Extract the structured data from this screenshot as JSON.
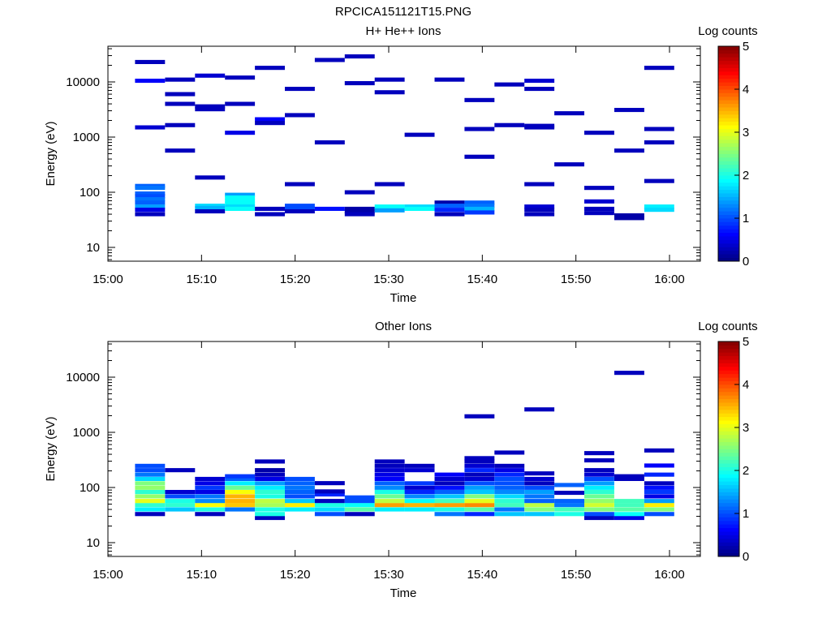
{
  "title": "RPCICA151121T15.PNG",
  "chart_data": [
    {
      "type": "heatmap",
      "title": "H+ He++ Ions",
      "xlabel": "Time",
      "ylabel": "Energy (eV)",
      "yscale": "log",
      "ylim": [
        5.6,
        44000
      ],
      "xlim_minutes": [
        0,
        63
      ],
      "xticks": [
        "15:00",
        "15:10",
        "15:20",
        "15:30",
        "15:40",
        "15:50",
        "16:00"
      ],
      "yticks": [
        "10",
        "100",
        "1000",
        "10000"
      ],
      "colorbar": {
        "label": "Log counts",
        "range": [
          0,
          5
        ],
        "ticks": [
          "0",
          "1",
          "2",
          "3",
          "4",
          "5"
        ],
        "colormap": "jet"
      },
      "time_bin_start_minutes": 2.9,
      "time_bin_width_minutes": 3.2,
      "columns": [
        [
          [
            23000,
            0.3
          ],
          [
            10500,
            0.6
          ],
          [
            1500,
            0.4
          ],
          [
            130,
            1.1
          ],
          [
            120,
            1.2
          ],
          [
            95,
            1.1
          ],
          [
            85,
            1.0
          ],
          [
            75,
            1.2
          ],
          [
            65,
            1.1
          ],
          [
            55,
            1.4
          ],
          [
            48,
            0.5
          ],
          [
            40,
            0.3
          ]
        ],
        [
          [
            11000,
            0.3
          ],
          [
            6000,
            0.3
          ],
          [
            4000,
            0.3
          ],
          [
            1650,
            0.3
          ],
          [
            570,
            0.3
          ]
        ],
        [
          [
            13000,
            0.4
          ],
          [
            3600,
            0.3
          ],
          [
            3200,
            0.3
          ],
          [
            185,
            0.3
          ],
          [
            57,
            1.7
          ],
          [
            52,
            1.5
          ],
          [
            45,
            0.3
          ]
        ],
        [
          [
            12000,
            0.3
          ],
          [
            4000,
            0.3
          ],
          [
            1200,
            0.5
          ],
          [
            90,
            1.4
          ],
          [
            80,
            1.9
          ],
          [
            70,
            1.9
          ],
          [
            62,
            1.9
          ],
          [
            55,
            1.7
          ],
          [
            50,
            1.9
          ]
        ],
        [
          [
            18000,
            0.3
          ],
          [
            2100,
            0.6
          ],
          [
            1800,
            0.3
          ],
          [
            50,
            0.3
          ],
          [
            40,
            0.3
          ]
        ],
        [
          [
            7500,
            0.3
          ],
          [
            2500,
            0.3
          ],
          [
            140,
            0.3
          ],
          [
            57,
            1.0
          ],
          [
            50,
            1.0
          ],
          [
            45,
            0.3
          ]
        ],
        [
          [
            25000,
            0.3
          ],
          [
            800,
            0.3
          ],
          [
            50,
            0.7
          ]
        ],
        [
          [
            29000,
            0.3
          ],
          [
            9500,
            0.3
          ],
          [
            100,
            0.3
          ],
          [
            50,
            0.2
          ],
          [
            45,
            0.2
          ],
          [
            40,
            0.3
          ]
        ],
        [
          [
            11000,
            0.3
          ],
          [
            6500,
            0.3
          ],
          [
            140,
            0.3
          ],
          [
            55,
            1.9
          ],
          [
            47,
            1.4
          ]
        ],
        [
          [
            1100,
            0.3
          ],
          [
            55,
            1.7
          ],
          [
            50,
            1.9
          ]
        ],
        [
          [
            11000,
            0.3
          ],
          [
            65,
            0.2
          ],
          [
            57,
            1.1
          ],
          [
            48,
            0.8
          ],
          [
            40,
            0.3
          ]
        ],
        [
          [
            4700,
            0.3
          ],
          [
            1400,
            0.3
          ],
          [
            440,
            0.3
          ],
          [
            65,
            1.1
          ],
          [
            57,
            1.2
          ],
          [
            50,
            1.5
          ],
          [
            43,
            0.9
          ]
        ],
        [
          [
            9000,
            0.3
          ],
          [
            1650,
            0.3
          ]
        ],
        [
          [
            10500,
            0.4
          ],
          [
            7500,
            0.3
          ],
          [
            1600,
            0.3
          ],
          [
            1500,
            0.3
          ],
          [
            140,
            0.3
          ],
          [
            55,
            0.4
          ],
          [
            48,
            0.3
          ],
          [
            40,
            0.3
          ]
        ],
        [
          [
            2700,
            0.3
          ],
          [
            320,
            0.3
          ]
        ],
        [
          [
            1200,
            0.3
          ],
          [
            120,
            0.3
          ],
          [
            68,
            0.4
          ],
          [
            50,
            0.3
          ],
          [
            42,
            0.3
          ]
        ],
        [
          [
            3100,
            0.3
          ],
          [
            570,
            0.3
          ],
          [
            38,
            0.2
          ],
          [
            34,
            0.2
          ]
        ],
        [
          [
            18000,
            0.3
          ],
          [
            1400,
            0.3
          ],
          [
            800,
            0.3
          ],
          [
            160,
            0.3
          ],
          [
            55,
            1.8
          ],
          [
            48,
            1.7
          ]
        ]
      ]
    },
    {
      "type": "heatmap",
      "title": "Other Ions",
      "xlabel": "Time",
      "ylabel": "Energy (eV)",
      "yscale": "log",
      "ylim": [
        5.6,
        44000
      ],
      "xlim_minutes": [
        0,
        63
      ],
      "xticks": [
        "15:00",
        "15:10",
        "15:20",
        "15:30",
        "15:40",
        "15:50",
        "16:00"
      ],
      "yticks": [
        "10",
        "100",
        "1000",
        "10000"
      ],
      "colorbar": {
        "label": "Log counts",
        "range": [
          0,
          5
        ],
        "ticks": [
          "0",
          "1",
          "2",
          "3",
          "4",
          "5"
        ],
        "colormap": "jet"
      },
      "time_bin_start_minutes": 2.9,
      "time_bin_width_minutes": 3.2,
      "columns": [
        [
          [
            33,
            0.3
          ],
          [
            40,
            1.8
          ],
          [
            48,
            2.1
          ],
          [
            57,
            3.0
          ],
          [
            69,
            2.6
          ],
          [
            83,
            2.1
          ],
          [
            99,
            2.6
          ],
          [
            119,
            2.5
          ],
          [
            143,
            1.7
          ],
          [
            171,
            1.2
          ],
          [
            206,
            1.0
          ],
          [
            247,
            1.0
          ]
        ],
        [
          [
            40,
            1.6
          ],
          [
            48,
            2.1
          ],
          [
            57,
            2.0
          ],
          [
            69,
            1.0
          ],
          [
            83,
            0.4
          ],
          [
            206,
            0.3
          ]
        ],
        [
          [
            33,
            0.3
          ],
          [
            40,
            2.0
          ],
          [
            48,
            3.1
          ],
          [
            57,
            1.3
          ],
          [
            69,
            1.2
          ],
          [
            83,
            0.5
          ],
          [
            99,
            0.9
          ],
          [
            119,
            0.5
          ],
          [
            143,
            0.4
          ]
        ],
        [
          [
            40,
            1.2
          ],
          [
            48,
            3.4
          ],
          [
            57,
            3.5
          ],
          [
            69,
            3.5
          ],
          [
            83,
            3.1
          ],
          [
            99,
            2.4
          ],
          [
            119,
            1.8
          ],
          [
            143,
            1.1
          ],
          [
            160,
            0.9
          ]
        ],
        [
          [
            28,
            0.3
          ],
          [
            33,
            2.0
          ],
          [
            40,
            2.0
          ],
          [
            48,
            2.7
          ],
          [
            57,
            2.8
          ],
          [
            69,
            2.0
          ],
          [
            83,
            2.1
          ],
          [
            99,
            1.8
          ],
          [
            119,
            1.4
          ],
          [
            143,
            0.5
          ],
          [
            171,
            0.3
          ],
          [
            206,
            0.2
          ],
          [
            296,
            0.3
          ]
        ],
        [
          [
            40,
            1.8
          ],
          [
            48,
            3.2
          ],
          [
            57,
            1.6
          ],
          [
            69,
            1.0
          ],
          [
            83,
            1.1
          ],
          [
            99,
            1.2
          ],
          [
            119,
            1.1
          ],
          [
            143,
            1.0
          ]
        ],
        [
          [
            33,
            1.0
          ],
          [
            40,
            1.7
          ],
          [
            48,
            2.0
          ],
          [
            57,
            0.3
          ],
          [
            75,
            0.8
          ],
          [
            85,
            0.3
          ],
          [
            120,
            0.3
          ]
        ],
        [
          [
            33,
            0.3
          ],
          [
            40,
            2.3
          ],
          [
            48,
            1.9
          ],
          [
            57,
            1.0
          ],
          [
            66,
            1.0
          ]
        ],
        [
          [
            40,
            1.8
          ],
          [
            48,
            3.6
          ],
          [
            57,
            2.8
          ],
          [
            69,
            2.4
          ],
          [
            83,
            2.0
          ],
          [
            99,
            1.3
          ],
          [
            119,
            1.1
          ],
          [
            143,
            0.6
          ],
          [
            171,
            0.5
          ],
          [
            206,
            0.4
          ],
          [
            247,
            0.3
          ],
          [
            296,
            0.3
          ]
        ],
        [
          [
            40,
            1.8
          ],
          [
            48,
            3.5
          ],
          [
            57,
            1.9
          ],
          [
            69,
            1.3
          ],
          [
            83,
            0.8
          ],
          [
            99,
            0.4
          ],
          [
            119,
            0.9
          ],
          [
            206,
            0.4
          ],
          [
            247,
            0.3
          ]
        ],
        [
          [
            33,
            1.2
          ],
          [
            40,
            2.0
          ],
          [
            48,
            3.6
          ],
          [
            57,
            2.2
          ],
          [
            69,
            1.6
          ],
          [
            83,
            1.1
          ],
          [
            99,
            0.7
          ],
          [
            119,
            0.3
          ],
          [
            143,
            0.4
          ],
          [
            171,
            0.6
          ]
        ],
        [
          [
            33,
            0.8
          ],
          [
            40,
            2.3
          ],
          [
            48,
            3.7
          ],
          [
            57,
            3.0
          ],
          [
            69,
            2.5
          ],
          [
            83,
            1.6
          ],
          [
            99,
            1.4
          ],
          [
            119,
            1.0
          ],
          [
            143,
            0.4
          ],
          [
            171,
            0.3
          ],
          [
            206,
            0.8
          ],
          [
            247,
            0.4
          ],
          [
            296,
            0.3
          ],
          [
            340,
            0.3
          ],
          [
            1950,
            0.3
          ]
        ],
        [
          [
            33,
            1.6
          ],
          [
            40,
            1.2
          ],
          [
            48,
            2.2
          ],
          [
            57,
            2.1
          ],
          [
            69,
            1.7
          ],
          [
            83,
            1.3
          ],
          [
            99,
            1.1
          ],
          [
            119,
            1.0
          ],
          [
            143,
            1.0
          ],
          [
            171,
            0.8
          ],
          [
            206,
            0.5
          ],
          [
            247,
            0.3
          ],
          [
            430,
            0.3
          ]
        ],
        [
          [
            33,
            1.6
          ],
          [
            40,
            2.5
          ],
          [
            48,
            2.8
          ],
          [
            57,
            1.1
          ],
          [
            69,
            1.2
          ],
          [
            83,
            1.4
          ],
          [
            99,
            1.0
          ],
          [
            119,
            0.3
          ],
          [
            143,
            0.4
          ],
          [
            180,
            0.3
          ],
          [
            2600,
            0.3
          ]
        ],
        [
          [
            33,
            2.0
          ],
          [
            40,
            2.2
          ],
          [
            48,
            1.2
          ],
          [
            57,
            1.1
          ],
          [
            80,
            0.3
          ],
          [
            111,
            1.1
          ]
        ],
        [
          [
            28,
            0.3
          ],
          [
            33,
            1.0
          ],
          [
            40,
            2.5
          ],
          [
            48,
            2.9
          ],
          [
            57,
            2.6
          ],
          [
            69,
            2.4
          ],
          [
            83,
            2.1
          ],
          [
            99,
            1.8
          ],
          [
            119,
            1.4
          ],
          [
            143,
            1.0
          ],
          [
            171,
            0.4
          ],
          [
            206,
            0.3
          ],
          [
            310,
            0.3
          ],
          [
            420,
            0.3
          ]
        ],
        [
          [
            28,
            0.5
          ],
          [
            33,
            1.9
          ],
          [
            40,
            2.3
          ],
          [
            48,
            2.2
          ],
          [
            57,
            2.2
          ],
          [
            143,
            0.3
          ],
          [
            160,
            0.3
          ],
          [
            12000,
            0.3
          ]
        ],
        [
          [
            33,
            1.0
          ],
          [
            40,
            2.5
          ],
          [
            48,
            3.2
          ],
          [
            57,
            1.4
          ],
          [
            69,
            0.5
          ],
          [
            83,
            0.9
          ],
          [
            99,
            0.7
          ],
          [
            119,
            0.3
          ],
          [
            171,
            0.8
          ],
          [
            250,
            0.6
          ],
          [
            470,
            0.3
          ]
        ]
      ]
    }
  ]
}
